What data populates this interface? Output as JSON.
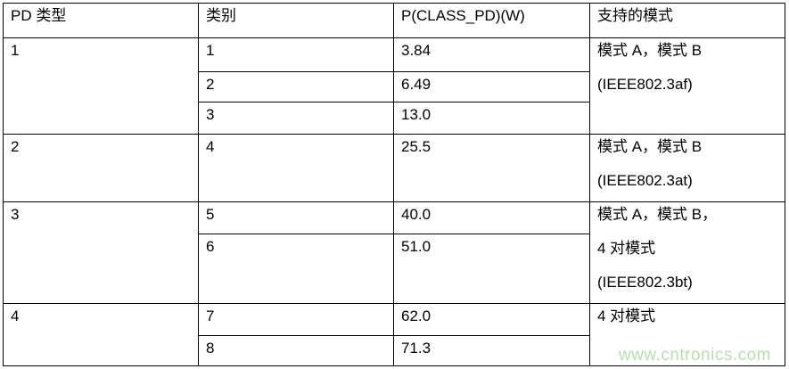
{
  "headers": {
    "pd_type": "PD 类型",
    "class": "类别",
    "power": "P(CLASS_PD)(W)",
    "modes": "支持的模式"
  },
  "rows": [
    {
      "pd_type": "1",
      "classes": [
        {
          "class": "1",
          "power": "3.84"
        },
        {
          "class": "2",
          "power": "6.49"
        },
        {
          "class": "3",
          "power": "13.0"
        }
      ],
      "modes": [
        "模式 A，模式 B",
        "(IEEE802.3af)"
      ]
    },
    {
      "pd_type": "2",
      "classes": [
        {
          "class": "4",
          "power": "25.5"
        }
      ],
      "modes": [
        "模式 A，模式 B",
        "(IEEE802.3at)"
      ]
    },
    {
      "pd_type": "3",
      "classes": [
        {
          "class": "5",
          "power": "40.0"
        },
        {
          "class": "6",
          "power": "51.0"
        }
      ],
      "modes": [
        "模式 A，模式 B，",
        "4 对模式",
        "(IEEE802.3bt)"
      ]
    },
    {
      "pd_type": "4",
      "classes": [
        {
          "class": "7",
          "power": "62.0"
        },
        {
          "class": "8",
          "power": "71.3"
        }
      ],
      "modes": [
        "4 对模式"
      ]
    }
  ],
  "watermark": "www.cntronics.com"
}
